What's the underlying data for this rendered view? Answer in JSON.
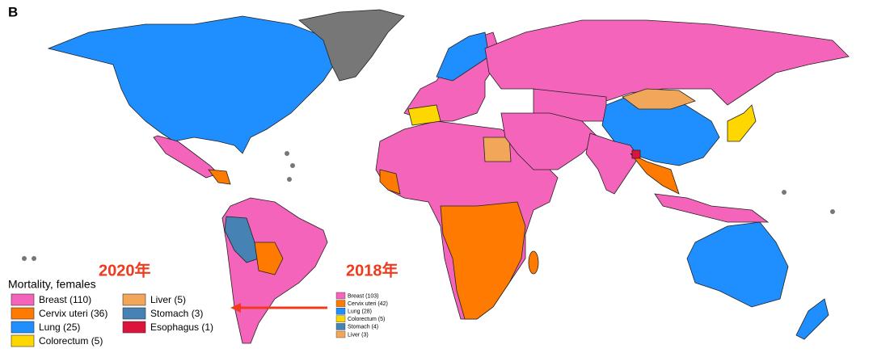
{
  "panel_label": "B",
  "year_new": "2020年",
  "year_old": "2018年",
  "legend_2020": {
    "title": "Mortality, females",
    "items": [
      {
        "label": "Breast (110)",
        "color": "#f464bb"
      },
      {
        "label": "Cervix uteri (36)",
        "color": "#ff7a00"
      },
      {
        "label": "Lung (25)",
        "color": "#1f8fff"
      },
      {
        "label": "Colorectum (5)",
        "color": "#ffd700"
      },
      {
        "label": "Liver (5)",
        "color": "#f2a65a"
      },
      {
        "label": "Stomach (3)",
        "color": "#4682b4"
      },
      {
        "label": "Esophagus (1)",
        "color": "#dc143c"
      }
    ]
  },
  "legend_2018": {
    "items": [
      {
        "label": "Breast (103)",
        "color": "#f464bb"
      },
      {
        "label": "Cervix uteri (42)",
        "color": "#ff7a00"
      },
      {
        "label": "Lung (28)",
        "color": "#1f8fff"
      },
      {
        "label": "Colorectum (5)",
        "color": "#ffd700"
      },
      {
        "label": "Stomach (4)",
        "color": "#4682b4"
      },
      {
        "label": "Liver (3)",
        "color": "#f2a65a"
      }
    ]
  }
}
